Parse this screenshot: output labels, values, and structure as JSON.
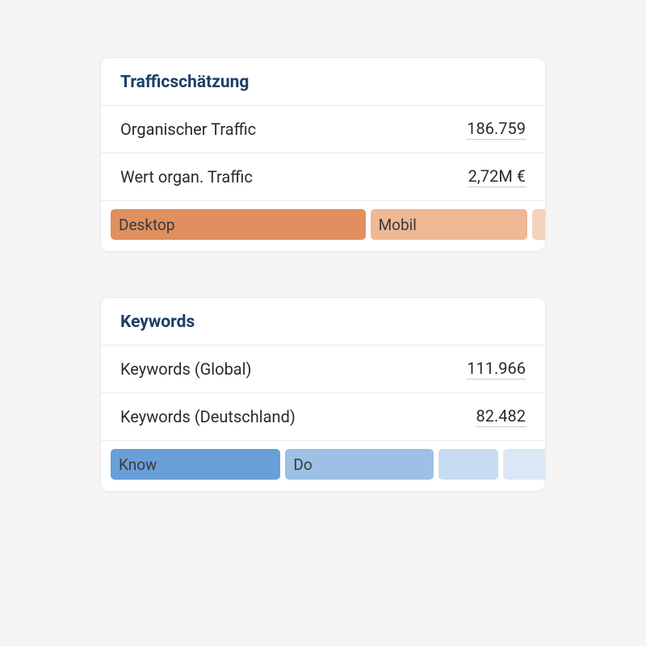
{
  "colors": {
    "title": "#1e3f66",
    "label": "#2b2b2b",
    "value": "#2b2b2b",
    "seg_text": "#3a3a3a"
  },
  "traffic_card": {
    "title": "Trafficschätzung",
    "rows": [
      {
        "label": "Organischer Traffic",
        "value": "186.759"
      },
      {
        "label": "Wert organ. Traffic",
        "value": "2,72M €"
      }
    ],
    "bar": {
      "segments": [
        {
          "label": "Desktop",
          "color": "#e08f5f",
          "pct": 60
        },
        {
          "label": "Mobil",
          "color": "#eeb894",
          "pct": 37
        },
        {
          "label": "",
          "color": "#f3d2bb",
          "pct": 3
        }
      ]
    }
  },
  "keywords_card": {
    "title": "Keywords",
    "rows": [
      {
        "label": "Keywords (Global)",
        "value": "111.966"
      },
      {
        "label": "Keywords (Deutschland)",
        "value": "82.482"
      }
    ],
    "bar": {
      "segments": [
        {
          "label": "Know",
          "color": "#699fd9",
          "pct": 40
        },
        {
          "label": "Do",
          "color": "#9cc0e6",
          "pct": 35
        },
        {
          "label": "",
          "color": "#c8dcf1",
          "pct": 14
        },
        {
          "label": "",
          "color": "#dae8f6",
          "pct": 11
        }
      ]
    }
  }
}
